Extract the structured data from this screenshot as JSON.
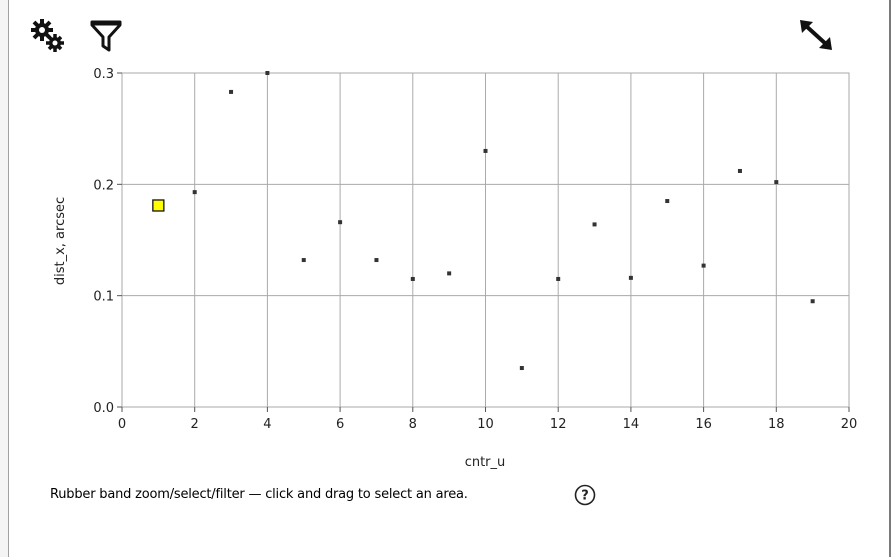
{
  "toolbar": {
    "settings_icon": "gears-icon",
    "filter_icon": "funnel-icon",
    "expand_icon": "expand-arrows-icon"
  },
  "chart_data": {
    "type": "scatter",
    "xlabel": "cntr_u",
    "ylabel": "dist_x, arcsec",
    "xlim": [
      0,
      20
    ],
    "ylim": [
      0.0,
      0.3
    ],
    "xticks": [
      "0",
      "2",
      "4",
      "6",
      "8",
      "10",
      "12",
      "14",
      "16",
      "18",
      "20"
    ],
    "yticks": [
      "0.0",
      "0.1",
      "0.2",
      "0.3"
    ],
    "grid": true,
    "points": [
      {
        "x": 1,
        "y": 0.181,
        "highlighted": true
      },
      {
        "x": 2,
        "y": 0.193
      },
      {
        "x": 3,
        "y": 0.283
      },
      {
        "x": 4,
        "y": 0.3
      },
      {
        "x": 5,
        "y": 0.132
      },
      {
        "x": 6,
        "y": 0.166
      },
      {
        "x": 7,
        "y": 0.132
      },
      {
        "x": 8,
        "y": 0.115
      },
      {
        "x": 9,
        "y": 0.12
      },
      {
        "x": 10,
        "y": 0.23
      },
      {
        "x": 11,
        "y": 0.035
      },
      {
        "x": 12,
        "y": 0.115
      },
      {
        "x": 13,
        "y": 0.164
      },
      {
        "x": 14,
        "y": 0.116
      },
      {
        "x": 15,
        "y": 0.185
      },
      {
        "x": 16,
        "y": 0.127
      },
      {
        "x": 17,
        "y": 0.212
      },
      {
        "x": 18,
        "y": 0.202
      },
      {
        "x": 19,
        "y": 0.095
      }
    ],
    "colors": {
      "point": "#333333",
      "highlight_fill": "#ffff00",
      "grid": "#aaaaaa"
    }
  },
  "footer": {
    "hint_text": "Rubber band zoom/select/filter — click and drag to select an area.",
    "help_icon": "question-circle-icon"
  }
}
